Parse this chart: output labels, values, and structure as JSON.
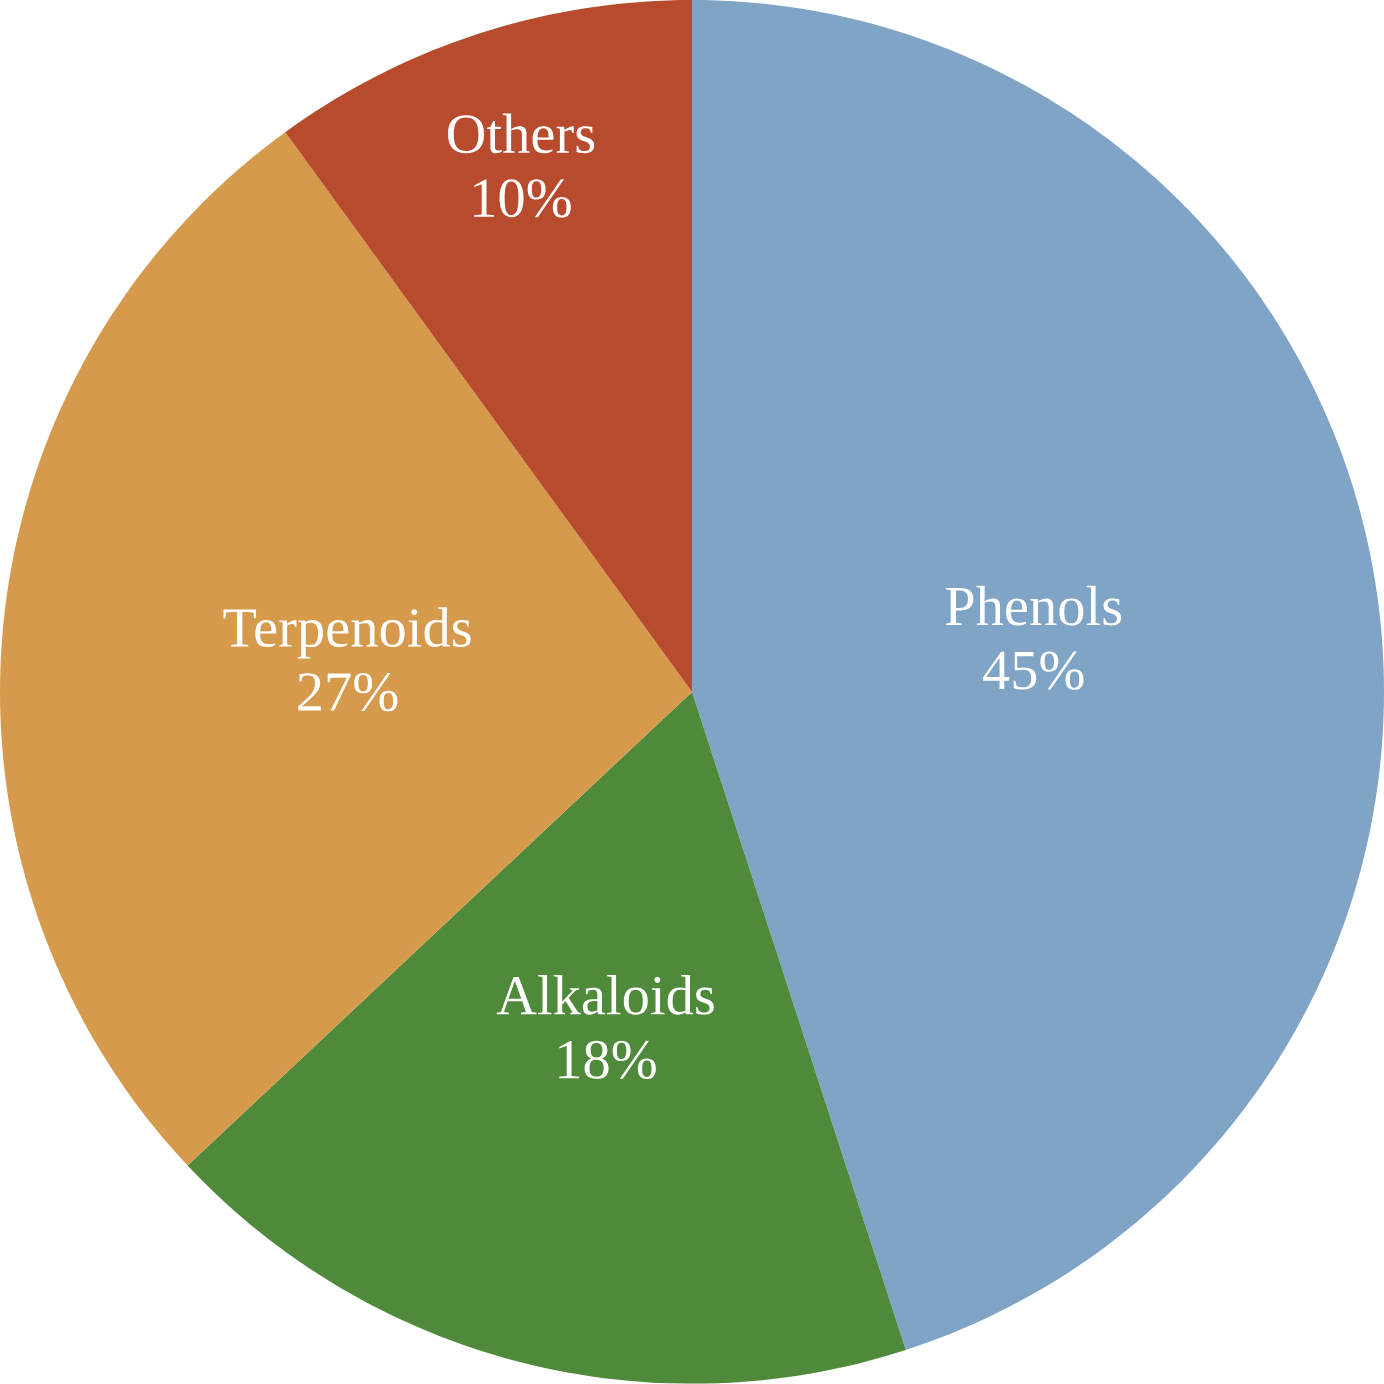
{
  "chart_data": {
    "type": "pie",
    "categories": [
      "Phenols",
      "Alkaloids",
      "Terpenoids",
      "Others"
    ],
    "values": [
      45,
      18,
      27,
      10
    ],
    "value_labels": [
      "45%",
      "18%",
      "27%",
      "10%"
    ],
    "colors": [
      "#7fa4c6",
      "#4f8a3b",
      "#d69a4c",
      "#b84a2d"
    ]
  }
}
